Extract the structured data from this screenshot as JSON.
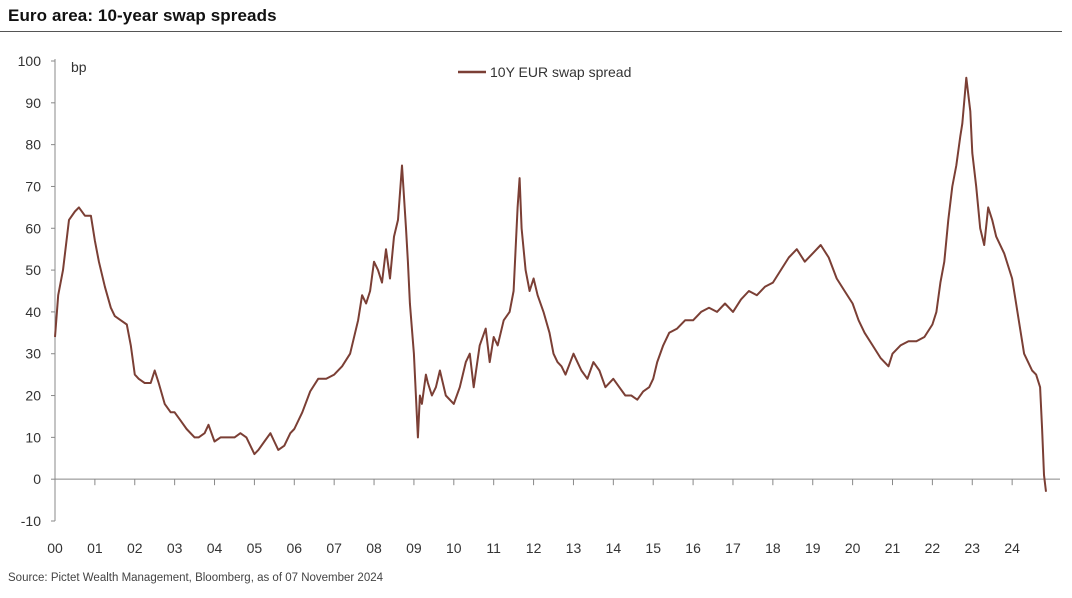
{
  "title": "Euro area: 10-year swap spreads",
  "source": "Source: Pictet Wealth Management, Bloomberg, as of 07 November 2024",
  "colors": {
    "line": "#7b3f35",
    "axis": "#888888",
    "text": "#333333"
  },
  "chart_data": {
    "type": "line",
    "title": "Euro area: 10-year swap spreads",
    "ylabel": "bp",
    "xlabel": "",
    "ylim": [
      -10,
      100
    ],
    "yticks": [
      -10,
      0,
      10,
      20,
      30,
      40,
      50,
      60,
      70,
      80,
      90,
      100
    ],
    "xlim": [
      2000.0,
      2025.2
    ],
    "xtick_labels": [
      "00",
      "01",
      "02",
      "03",
      "04",
      "05",
      "06",
      "07",
      "08",
      "09",
      "10",
      "11",
      "12",
      "13",
      "14",
      "15",
      "16",
      "17",
      "18",
      "19",
      "20",
      "21",
      "22",
      "23",
      "24"
    ],
    "grid": false,
    "legend_position": "top-center",
    "series": [
      {
        "name": "10Y EUR swap spread",
        "x": [
          2000.0,
          2000.08,
          2000.2,
          2000.35,
          2000.5,
          2000.6,
          2000.75,
          2000.9,
          2001.0,
          2001.1,
          2001.25,
          2001.4,
          2001.5,
          2001.65,
          2001.8,
          2001.9,
          2002.0,
          2002.1,
          2002.25,
          2002.4,
          2002.5,
          2002.6,
          2002.75,
          2002.9,
          2003.0,
          2003.15,
          2003.3,
          2003.5,
          2003.6,
          2003.75,
          2003.85,
          2004.0,
          2004.15,
          2004.3,
          2004.5,
          2004.65,
          2004.8,
          2005.0,
          2005.1,
          2005.25,
          2005.4,
          2005.5,
          2005.6,
          2005.75,
          2005.9,
          2006.0,
          2006.2,
          2006.4,
          2006.6,
          2006.8,
          2007.0,
          2007.2,
          2007.4,
          2007.6,
          2007.7,
          2007.8,
          2007.9,
          2008.0,
          2008.1,
          2008.2,
          2008.3,
          2008.4,
          2008.5,
          2008.6,
          2008.7,
          2008.8,
          2008.85,
          2008.9,
          2009.0,
          2009.1,
          2009.15,
          2009.2,
          2009.3,
          2009.35,
          2009.45,
          2009.55,
          2009.65,
          2009.8,
          2010.0,
          2010.15,
          2010.3,
          2010.4,
          2010.5,
          2010.65,
          2010.8,
          2010.9,
          2011.0,
          2011.1,
          2011.25,
          2011.4,
          2011.5,
          2011.6,
          2011.65,
          2011.7,
          2011.8,
          2011.9,
          2012.0,
          2012.1,
          2012.25,
          2012.4,
          2012.5,
          2012.6,
          2012.7,
          2012.8,
          2013.0,
          2013.1,
          2013.2,
          2013.35,
          2013.5,
          2013.65,
          2013.8,
          2014.0,
          2014.15,
          2014.3,
          2014.45,
          2014.6,
          2014.75,
          2014.9,
          2015.0,
          2015.1,
          2015.25,
          2015.4,
          2015.6,
          2015.8,
          2016.0,
          2016.2,
          2016.4,
          2016.6,
          2016.8,
          2017.0,
          2017.2,
          2017.4,
          2017.6,
          2017.8,
          2018.0,
          2018.2,
          2018.4,
          2018.6,
          2018.8,
          2019.0,
          2019.2,
          2019.4,
          2019.6,
          2019.8,
          2020.0,
          2020.15,
          2020.3,
          2020.5,
          2020.7,
          2020.9,
          2021.0,
          2021.2,
          2021.4,
          2021.6,
          2021.8,
          2022.0,
          2022.1,
          2022.2,
          2022.3,
          2022.4,
          2022.5,
          2022.6,
          2022.7,
          2022.75,
          2022.85,
          2022.95,
          2023.0,
          2023.1,
          2023.2,
          2023.3,
          2023.4,
          2023.5,
          2023.6,
          2023.8,
          2024.0,
          2024.1,
          2024.2,
          2024.3,
          2024.4,
          2024.5,
          2024.6,
          2024.7,
          2024.75,
          2024.8,
          2024.85
        ],
        "values": [
          34,
          44,
          50,
          62,
          64,
          65,
          63,
          63,
          57,
          52,
          46,
          41,
          39,
          38,
          37,
          32,
          25,
          24,
          23,
          23,
          26,
          23,
          18,
          16,
          16,
          14,
          12,
          10,
          10,
          11,
          13,
          9,
          10,
          10,
          10,
          11,
          10,
          6,
          7,
          9,
          11,
          9,
          7,
          8,
          11,
          12,
          16,
          21,
          24,
          24,
          25,
          27,
          30,
          38,
          44,
          42,
          45,
          52,
          50,
          47,
          55,
          48,
          58,
          62,
          75,
          60,
          52,
          42,
          30,
          10,
          20,
          18,
          25,
          23,
          20,
          22,
          26,
          20,
          18,
          22,
          28,
          30,
          22,
          32,
          36,
          28,
          34,
          32,
          38,
          40,
          45,
          65,
          72,
          60,
          50,
          45,
          48,
          44,
          40,
          35,
          30,
          28,
          27,
          25,
          30,
          28,
          26,
          24,
          28,
          26,
          22,
          24,
          22,
          20,
          20,
          19,
          21,
          22,
          24,
          28,
          32,
          35,
          36,
          38,
          38,
          40,
          41,
          40,
          42,
          40,
          43,
          45,
          44,
          46,
          47,
          50,
          53,
          55,
          52,
          54,
          56,
          53,
          48,
          45,
          42,
          38,
          35,
          32,
          29,
          27,
          30,
          32,
          33,
          33,
          34,
          37,
          40,
          47,
          52,
          62,
          70,
          75,
          82,
          85,
          96,
          88,
          78,
          70,
          60,
          56,
          65,
          62,
          58,
          54,
          48,
          42,
          36,
          30,
          28,
          26,
          25,
          22,
          12,
          1,
          -3
        ]
      }
    ]
  }
}
